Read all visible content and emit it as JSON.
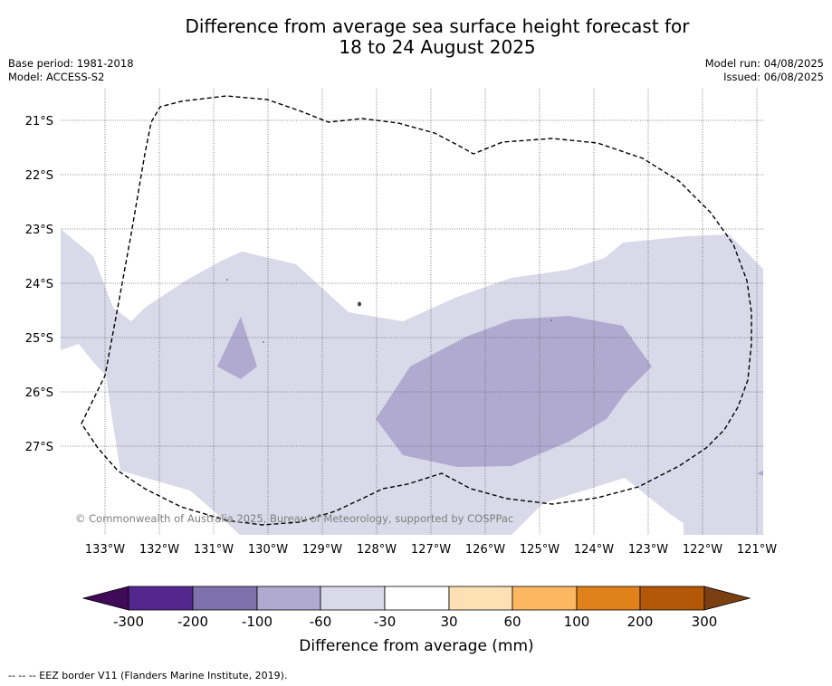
{
  "title": {
    "line1": "Difference from average sea surface height forecast for",
    "line2": "18 to 24 August 2025"
  },
  "meta_left": {
    "base_period": "Base period: 1981-2018",
    "model": "Model: ACCESS-S2"
  },
  "meta_right": {
    "model_run": "Model run: 04/08/2025",
    "issued": "Issued: 06/08/2025"
  },
  "map": {
    "lat_labels": [
      "21°S",
      "22°S",
      "23°S",
      "24°S",
      "25°S",
      "26°S",
      "27°S"
    ],
    "lon_labels": [
      "133°W",
      "132°W",
      "131°W",
      "130°W",
      "129°W",
      "128°W",
      "127°W",
      "126°W",
      "125°W",
      "124°W",
      "123°W",
      "122°W",
      "121°W"
    ],
    "copyright": "© Commonwealth of Australia 2025, Bureau of Meteorology, supported by COSPPac",
    "fill_colors": {
      "light_purple": "#d9d9e9",
      "mid_purple": "#b0aad0"
    }
  },
  "colorbar": {
    "title": "Difference from average (mm)",
    "tick_labels": [
      "-300",
      "-200",
      "-100",
      "-60",
      "-30",
      "30",
      "60",
      "100",
      "200",
      "300"
    ],
    "colors": [
      "#3f0a57",
      "#54278f",
      "#7e71ab",
      "#b0aad0",
      "#d9d9e9",
      "#ffffff",
      "#fee0b5",
      "#fdb760",
      "#e0811b",
      "#b25807",
      "#7b3f12"
    ]
  },
  "legend_note": "-- -- -- EEZ border V11 (Flanders Marine Institute, 2019)."
}
